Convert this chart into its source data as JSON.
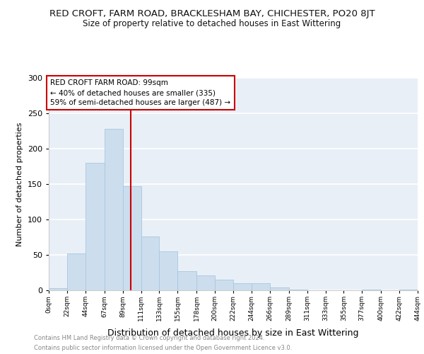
{
  "title": "RED CROFT, FARM ROAD, BRACKLESHAM BAY, CHICHESTER, PO20 8JT",
  "subtitle": "Size of property relative to detached houses in East Wittering",
  "xlabel": "Distribution of detached houses by size in East Wittering",
  "ylabel": "Number of detached properties",
  "bin_labels": [
    "0sqm",
    "22sqm",
    "44sqm",
    "67sqm",
    "89sqm",
    "111sqm",
    "133sqm",
    "155sqm",
    "178sqm",
    "200sqm",
    "222sqm",
    "244sqm",
    "266sqm",
    "289sqm",
    "311sqm",
    "333sqm",
    "355sqm",
    "377sqm",
    "400sqm",
    "422sqm",
    "444sqm"
  ],
  "bin_edges": [
    0,
    22,
    44,
    67,
    89,
    111,
    133,
    155,
    178,
    200,
    222,
    244,
    266,
    289,
    311,
    333,
    355,
    377,
    400,
    422,
    444
  ],
  "bar_values": [
    3,
    52,
    180,
    228,
    147,
    76,
    55,
    27,
    21,
    15,
    10,
    10,
    4,
    1,
    0,
    0,
    0,
    1,
    0,
    1
  ],
  "bar_color": "#ccdded",
  "bar_edgecolor": "#a8c8e0",
  "vline_x": 99,
  "vline_color": "#cc0000",
  "ylim": [
    0,
    300
  ],
  "yticks": [
    0,
    50,
    100,
    150,
    200,
    250,
    300
  ],
  "annotation_title": "RED CROFT FARM ROAD: 99sqm",
  "annotation_line1": "← 40% of detached houses are smaller (335)",
  "annotation_line2": "59% of semi-detached houses are larger (487) →",
  "annotation_box_facecolor": "#ffffff",
  "annotation_box_edgecolor": "#cc0000",
  "footer1": "Contains HM Land Registry data © Crown copyright and database right 2024.",
  "footer2": "Contains public sector information licensed under the Open Government Licence v3.0.",
  "background_color": "#ffffff",
  "plot_background": "#e8eff7",
  "grid_color": "#ffffff",
  "title_fontsize": 9.5,
  "subtitle_fontsize": 8.5,
  "xlabel_fontsize": 9,
  "ylabel_fontsize": 8,
  "footer_fontsize": 6,
  "footer_color": "#888888"
}
